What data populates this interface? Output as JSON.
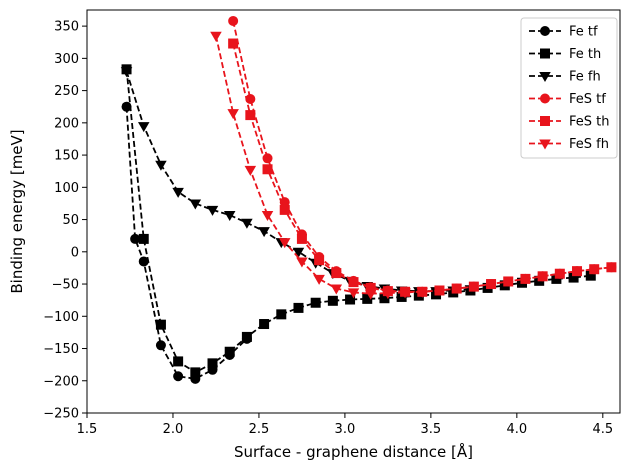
{
  "chart_data": {
    "type": "line",
    "xlabel": "Surface - graphene distance [Å]",
    "ylabel": "Binding energy [meV]",
    "xlim": [
      1.5,
      4.6
    ],
    "ylim": [
      -250,
      375
    ],
    "xticks": [
      1.5,
      2.0,
      2.5,
      3.0,
      3.5,
      4.0,
      4.5
    ],
    "yticks": [
      -250,
      -200,
      -150,
      -100,
      -50,
      0,
      50,
      100,
      150,
      200,
      250,
      300,
      350
    ],
    "xtick_labels": [
      "1.5",
      "2.0",
      "2.5",
      "3.0",
      "3.5",
      "4.0",
      "4.5"
    ],
    "ytick_labels": [
      "−250",
      "−200",
      "−150",
      "−100",
      "−50",
      "0",
      "50",
      "100",
      "150",
      "200",
      "250",
      "300",
      "350"
    ],
    "legend_position": "top-right",
    "series": [
      {
        "name": "Fe tf",
        "color": "#000000",
        "marker": "circle",
        "x": [
          1.73,
          1.78,
          1.83,
          1.93,
          2.03,
          2.13,
          2.23,
          2.33,
          2.43
        ],
        "y": [
          225,
          20,
          -15,
          -145,
          -193,
          -197,
          -183,
          -160,
          -135
        ]
      },
      {
        "name": "Fe th",
        "color": "#000000",
        "marker": "square",
        "x": [
          1.73,
          1.83,
          1.93,
          2.03,
          2.13,
          2.23,
          2.33,
          2.43,
          2.53,
          2.63,
          2.73,
          2.83,
          2.93,
          3.03,
          3.13,
          3.23,
          3.33,
          3.43,
          3.53,
          3.63,
          3.73,
          3.83,
          3.93,
          4.03,
          4.13,
          4.23,
          4.33,
          4.43
        ],
        "y": [
          283,
          20,
          -113,
          -170,
          -187,
          -173,
          -155,
          -132,
          -112,
          -97,
          -87,
          -79,
          -76,
          -74,
          -73,
          -72,
          -70,
          -68,
          -66,
          -63,
          -60,
          -56,
          -52,
          -48,
          -45,
          -42,
          -40,
          -37
        ]
      },
      {
        "name": "Fe fh",
        "color": "#000000",
        "marker": "triangle-down",
        "x": [
          1.73,
          1.83,
          1.93,
          2.03,
          2.13,
          2.23,
          2.33,
          2.43,
          2.53,
          2.63,
          2.73,
          2.83,
          2.93,
          3.03,
          3.13,
          3.23,
          3.33,
          3.43,
          3.53,
          3.63,
          3.73
        ],
        "y": [
          280,
          195,
          135,
          93,
          75,
          65,
          57,
          45,
          32,
          15,
          0,
          -17,
          -33,
          -45,
          -53,
          -57,
          -60,
          -61,
          -61,
          -60,
          -58
        ]
      },
      {
        "name": "FeS tf",
        "color": "#e8141c",
        "marker": "circle",
        "x": [
          2.35,
          2.45,
          2.55,
          2.65,
          2.75,
          2.85,
          2.95,
          3.05,
          3.15,
          3.25,
          3.35,
          3.45,
          3.55,
          3.65,
          3.75,
          3.85,
          3.95,
          4.05,
          4.15,
          4.25,
          4.35,
          4.45,
          4.55
        ],
        "y": [
          358,
          237,
          145,
          77,
          27,
          -8,
          -30,
          -45,
          -55,
          -60,
          -62,
          -62,
          -60,
          -57,
          -54,
          -50,
          -46,
          -42,
          -38,
          -34,
          -30,
          -27,
          -24
        ]
      },
      {
        "name": "FeS th",
        "color": "#e8141c",
        "marker": "square",
        "x": [
          2.35,
          2.45,
          2.55,
          2.65,
          2.75,
          2.85,
          2.95,
          3.05,
          3.15,
          3.25,
          3.35,
          3.45,
          3.55,
          3.65,
          3.75,
          3.85,
          3.95,
          4.05,
          4.15,
          4.25,
          4.35,
          4.45,
          4.55
        ],
        "y": [
          323,
          212,
          128,
          65,
          20,
          -13,
          -33,
          -47,
          -56,
          -61,
          -62,
          -62,
          -60,
          -57,
          -54,
          -50,
          -46,
          -42,
          -38,
          -34,
          -30,
          -27,
          -24
        ]
      },
      {
        "name": "FeS fh",
        "color": "#e8141c",
        "marker": "triangle-down",
        "x": [
          2.25,
          2.35,
          2.45,
          2.55,
          2.65,
          2.75,
          2.85,
          2.95,
          3.05,
          3.15,
          3.25,
          3.35,
          3.45
        ],
        "y": [
          335,
          215,
          127,
          57,
          15,
          -15,
          -42,
          -57,
          -63,
          -65,
          -64,
          -63,
          -62
        ]
      }
    ]
  }
}
